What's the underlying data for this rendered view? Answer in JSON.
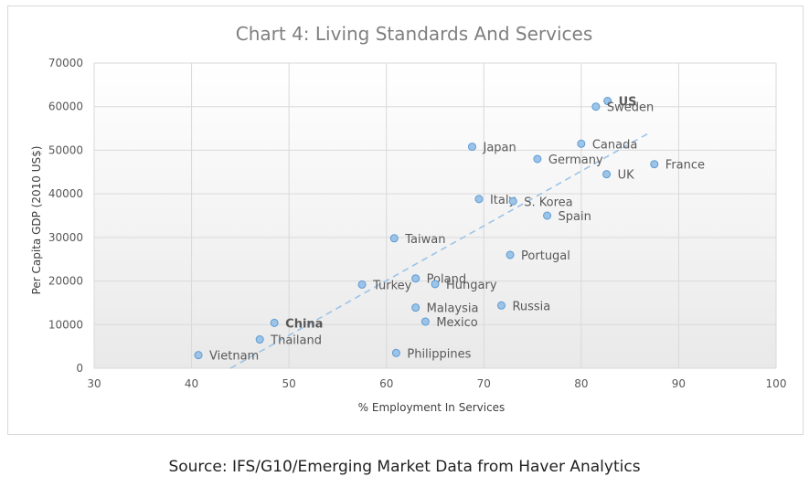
{
  "chart_data": {
    "type": "scatter",
    "title": "Chart 4: Living Standards And Services",
    "xlabel": "% Employment In Services",
    "ylabel": "Per Capita GDP (2010 US$)",
    "xlim": [
      30,
      100
    ],
    "ylim": [
      0,
      70000
    ],
    "x_ticks": [
      30,
      40,
      50,
      60,
      70,
      80,
      90,
      100
    ],
    "y_ticks": [
      0,
      10000,
      20000,
      30000,
      40000,
      50000,
      60000,
      70000
    ],
    "grid": true,
    "trendline": {
      "x": [
        44,
        87
      ],
      "y": [
        0,
        54000
      ],
      "style": "dashed"
    },
    "points": [
      {
        "label": "US",
        "x": 82.7,
        "y": 61300,
        "highlight": true
      },
      {
        "label": "Sweden",
        "x": 81.5,
        "y": 60000,
        "highlight": false
      },
      {
        "label": "Japan",
        "x": 68.8,
        "y": 50800,
        "highlight": false
      },
      {
        "label": "Canada",
        "x": 80.0,
        "y": 51500,
        "highlight": false
      },
      {
        "label": "Germany",
        "x": 75.5,
        "y": 48000,
        "highlight": false
      },
      {
        "label": "France",
        "x": 87.5,
        "y": 46800,
        "highlight": false
      },
      {
        "label": "UK",
        "x": 82.6,
        "y": 44500,
        "highlight": false
      },
      {
        "label": "Italy",
        "x": 69.5,
        "y": 38800,
        "highlight": false
      },
      {
        "label": "S. Korea",
        "x": 73.0,
        "y": 38300,
        "highlight": false
      },
      {
        "label": "Spain",
        "x": 76.5,
        "y": 35000,
        "highlight": false
      },
      {
        "label": "Taiwan",
        "x": 60.8,
        "y": 29800,
        "highlight": false
      },
      {
        "label": "Portugal",
        "x": 72.7,
        "y": 26000,
        "highlight": false
      },
      {
        "label": "Poland",
        "x": 63.0,
        "y": 20600,
        "highlight": false
      },
      {
        "label": "Hungary",
        "x": 65.0,
        "y": 19300,
        "highlight": false
      },
      {
        "label": "Turkey",
        "x": 57.5,
        "y": 19200,
        "highlight": false
      },
      {
        "label": "Malaysia",
        "x": 63.0,
        "y": 13900,
        "highlight": false
      },
      {
        "label": "Russia",
        "x": 71.8,
        "y": 14400,
        "highlight": false
      },
      {
        "label": "Mexico",
        "x": 64.0,
        "y": 10700,
        "highlight": false
      },
      {
        "label": "China",
        "x": 48.5,
        "y": 10400,
        "highlight": true
      },
      {
        "label": "Thailand",
        "x": 47.0,
        "y": 6600,
        "highlight": false
      },
      {
        "label": "Vietnam",
        "x": 40.7,
        "y": 3000,
        "highlight": false
      },
      {
        "label": "Philippines",
        "x": 61.0,
        "y": 3500,
        "highlight": false
      }
    ]
  },
  "source": "Source: IFS/G10/Emerging Market Data from Haver Analytics",
  "colors": {
    "point": "#9dc3e6",
    "point_stroke": "#5b9bd5",
    "highlight_label": "#e02020",
    "trend": "#9dc3e6"
  }
}
